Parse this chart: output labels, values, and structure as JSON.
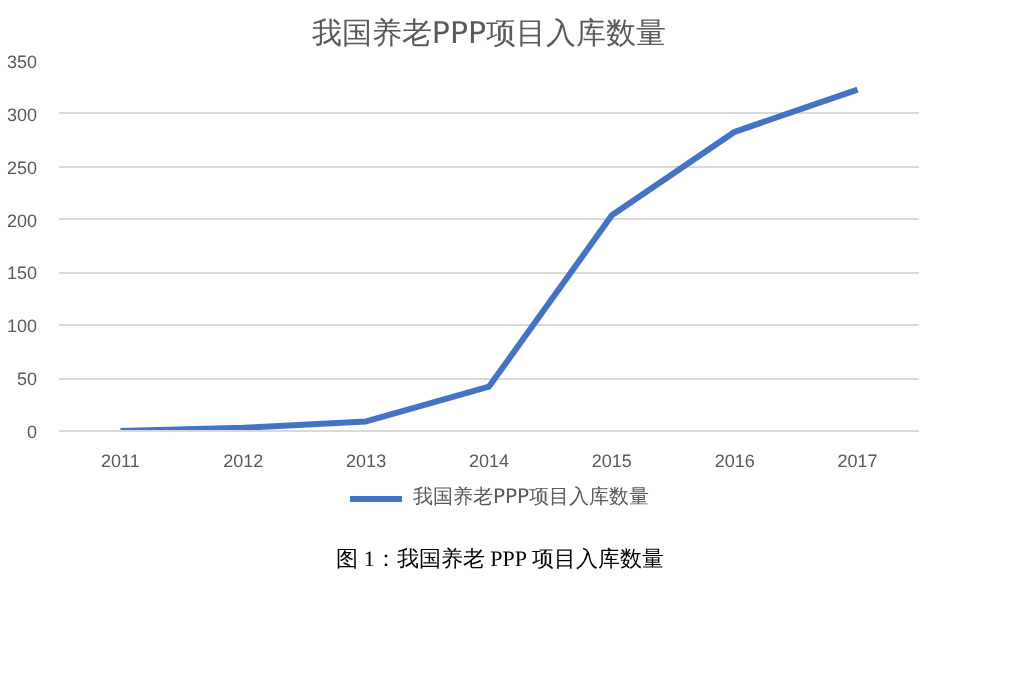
{
  "chart_data": {
    "type": "line",
    "title": "我国养老PPP项目入库数量",
    "categories": [
      "2011",
      "2012",
      "2013",
      "2014",
      "2015",
      "2016",
      "2017"
    ],
    "series": [
      {
        "name": "我国养老PPP项目入库数量",
        "color": "#4472c4",
        "values": [
          0,
          3,
          9,
          42,
          204,
          283,
          323
        ]
      }
    ],
    "ylim": [
      0,
      350
    ],
    "yticks": [
      0,
      50,
      100,
      150,
      200,
      250,
      300,
      350
    ],
    "grid": "y",
    "legend": "bottom",
    "annotations": [
      "图 1：我国养老 PPP 项目入库数量"
    ]
  }
}
